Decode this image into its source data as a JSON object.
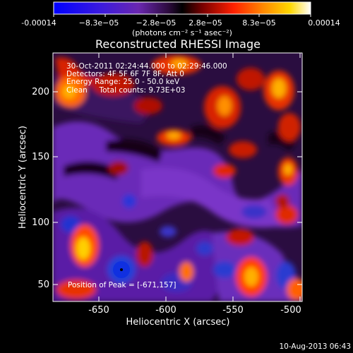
{
  "plot": {
    "title": "Reconstructed RHESSI Image",
    "xlabel": "Heliocentric X (arcsec)",
    "ylabel": "Heliocentric Y (arcsec)",
    "xticks": [
      "-650",
      "-600",
      "-550",
      "-500"
    ],
    "yticks": [
      "50",
      "100",
      "150",
      "200"
    ],
    "footer": "10-Aug-2013 06:43"
  },
  "colorbar": {
    "ticks": [
      "-0.00014",
      "−8.3e−05",
      "−2.8e−05",
      "2.8e−05",
      "8.3e−05",
      "0.00014"
    ],
    "unit_label": "(photons cm⁻² s⁻¹ asec⁻²)"
  },
  "annotation": {
    "time_range": "30-Oct-2011 02:24:44.000 to 02:29:46.000",
    "detectors": "Detectors: 4F 5F 6F 7F 8F, Att 0",
    "energy": "Energy Range: 25.0 - 50.0 keV",
    "clean": "Clean     Total counts: 9.73E+03",
    "peak": "Position of Peak = [-671,157]"
  }
}
